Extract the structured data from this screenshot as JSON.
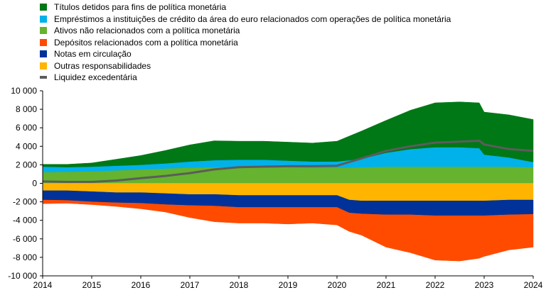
{
  "chart_data": {
    "type": "area",
    "x_ticks": [
      "2014",
      "2015",
      "2016",
      "2017",
      "2018",
      "2019",
      "2020",
      "2021",
      "2022",
      "2023",
      "2024"
    ],
    "y_ticks": [
      "10 000",
      "8 000",
      "6 000",
      "4 000",
      "2 000",
      "0",
      "-2 000",
      "-4 000",
      "-6 000",
      "-8 000",
      "-10 000"
    ],
    "xlim": [
      2014,
      2024
    ],
    "ylim": [
      -10000,
      10000
    ],
    "x": [
      2014,
      2014.5,
      2015,
      2015.5,
      2016,
      2016.5,
      2017,
      2017.5,
      2018,
      2018.5,
      2019,
      2019.5,
      2020,
      2020.25,
      2020.5,
      2021,
      2021.5,
      2022,
      2022.5,
      2022.9,
      2023,
      2023.5,
      2024
    ],
    "assets": [
      {
        "name": "Ativos não relacionados com a política monetária",
        "color": "#65b32e",
        "values": [
          1200,
          1250,
          1300,
          1400,
          1500,
          1600,
          1700,
          1750,
          1800,
          1800,
          1750,
          1700,
          1700,
          1700,
          1750,
          1800,
          1800,
          1800,
          1800,
          1800,
          1800,
          1800,
          1750
        ]
      },
      {
        "name": "Empréstimos a instituições de crédito da área do euro relacionados com operações de política monetária",
        "color": "#00b1ea",
        "values": [
          600,
          500,
          500,
          500,
          500,
          550,
          650,
          750,
          750,
          750,
          700,
          650,
          650,
          800,
          900,
          1500,
          1900,
          2100,
          2100,
          2000,
          1300,
          1000,
          550
        ]
      },
      {
        "name": "Títulos detidos para fins de política monetária",
        "color": "#007816",
        "values": [
          250,
          300,
          400,
          700,
          1000,
          1400,
          1800,
          2100,
          2000,
          2000,
          2000,
          2000,
          2200,
          2600,
          3000,
          3500,
          4200,
          4800,
          4900,
          4900,
          4600,
          4600,
          4600
        ]
      }
    ],
    "liabilities": [
      {
        "name": "Outras responsabilidades",
        "color": "#ffb400",
        "values": [
          800,
          800,
          900,
          1000,
          1000,
          1100,
          1200,
          1200,
          1300,
          1300,
          1300,
          1300,
          1300,
          1800,
          1900,
          1900,
          1900,
          1900,
          1900,
          1900,
          1900,
          1800,
          1800
        ]
      },
      {
        "name": "Notas em circulação",
        "color": "#003299",
        "values": [
          1000,
          1050,
          1100,
          1100,
          1150,
          1200,
          1200,
          1250,
          1300,
          1300,
          1300,
          1300,
          1300,
          1400,
          1400,
          1500,
          1500,
          1600,
          1600,
          1600,
          1600,
          1600,
          1550
        ]
      },
      {
        "name": "Depósitos relacionados com a política monetária",
        "color": "#ff4b00",
        "values": [
          400,
          300,
          300,
          400,
          600,
          800,
          1300,
          1700,
          1700,
          1700,
          1800,
          1700,
          1900,
          2000,
          2300,
          3500,
          4100,
          4800,
          4900,
          4600,
          4400,
          3800,
          3550
        ]
      }
    ],
    "excess_liquidity": {
      "name": "Liquidez excedentária",
      "color": "#5c5c5c",
      "values": [
        200,
        150,
        150,
        300,
        550,
        800,
        1100,
        1500,
        1750,
        1800,
        1850,
        1850,
        1900,
        2300,
        2700,
        3500,
        4000,
        4400,
        4500,
        4600,
        4200,
        3700,
        3500
      ]
    },
    "legend": [
      {
        "label": "Títulos detidos para fins de política monetária",
        "color": "#007816",
        "kind": "box"
      },
      {
        "label": "Empréstimos a instituições de crédito da área do euro relacionados com operações de política monetária",
        "color": "#00b1ea",
        "kind": "box"
      },
      {
        "label": "Ativos não relacionados com a política monetária",
        "color": "#65b32e",
        "kind": "box"
      },
      {
        "label": "Depósitos relacionados com a política monetária",
        "color": "#ff4b00",
        "kind": "box"
      },
      {
        "label": "Notas em circulação",
        "color": "#003299",
        "kind": "box"
      },
      {
        "label": "Outras responsabilidades",
        "color": "#ffb400",
        "kind": "box"
      },
      {
        "label": "Liquidez excedentária",
        "color": "#5c5c5c",
        "kind": "line"
      }
    ],
    "legend_position": "top-left",
    "grid": false
  }
}
